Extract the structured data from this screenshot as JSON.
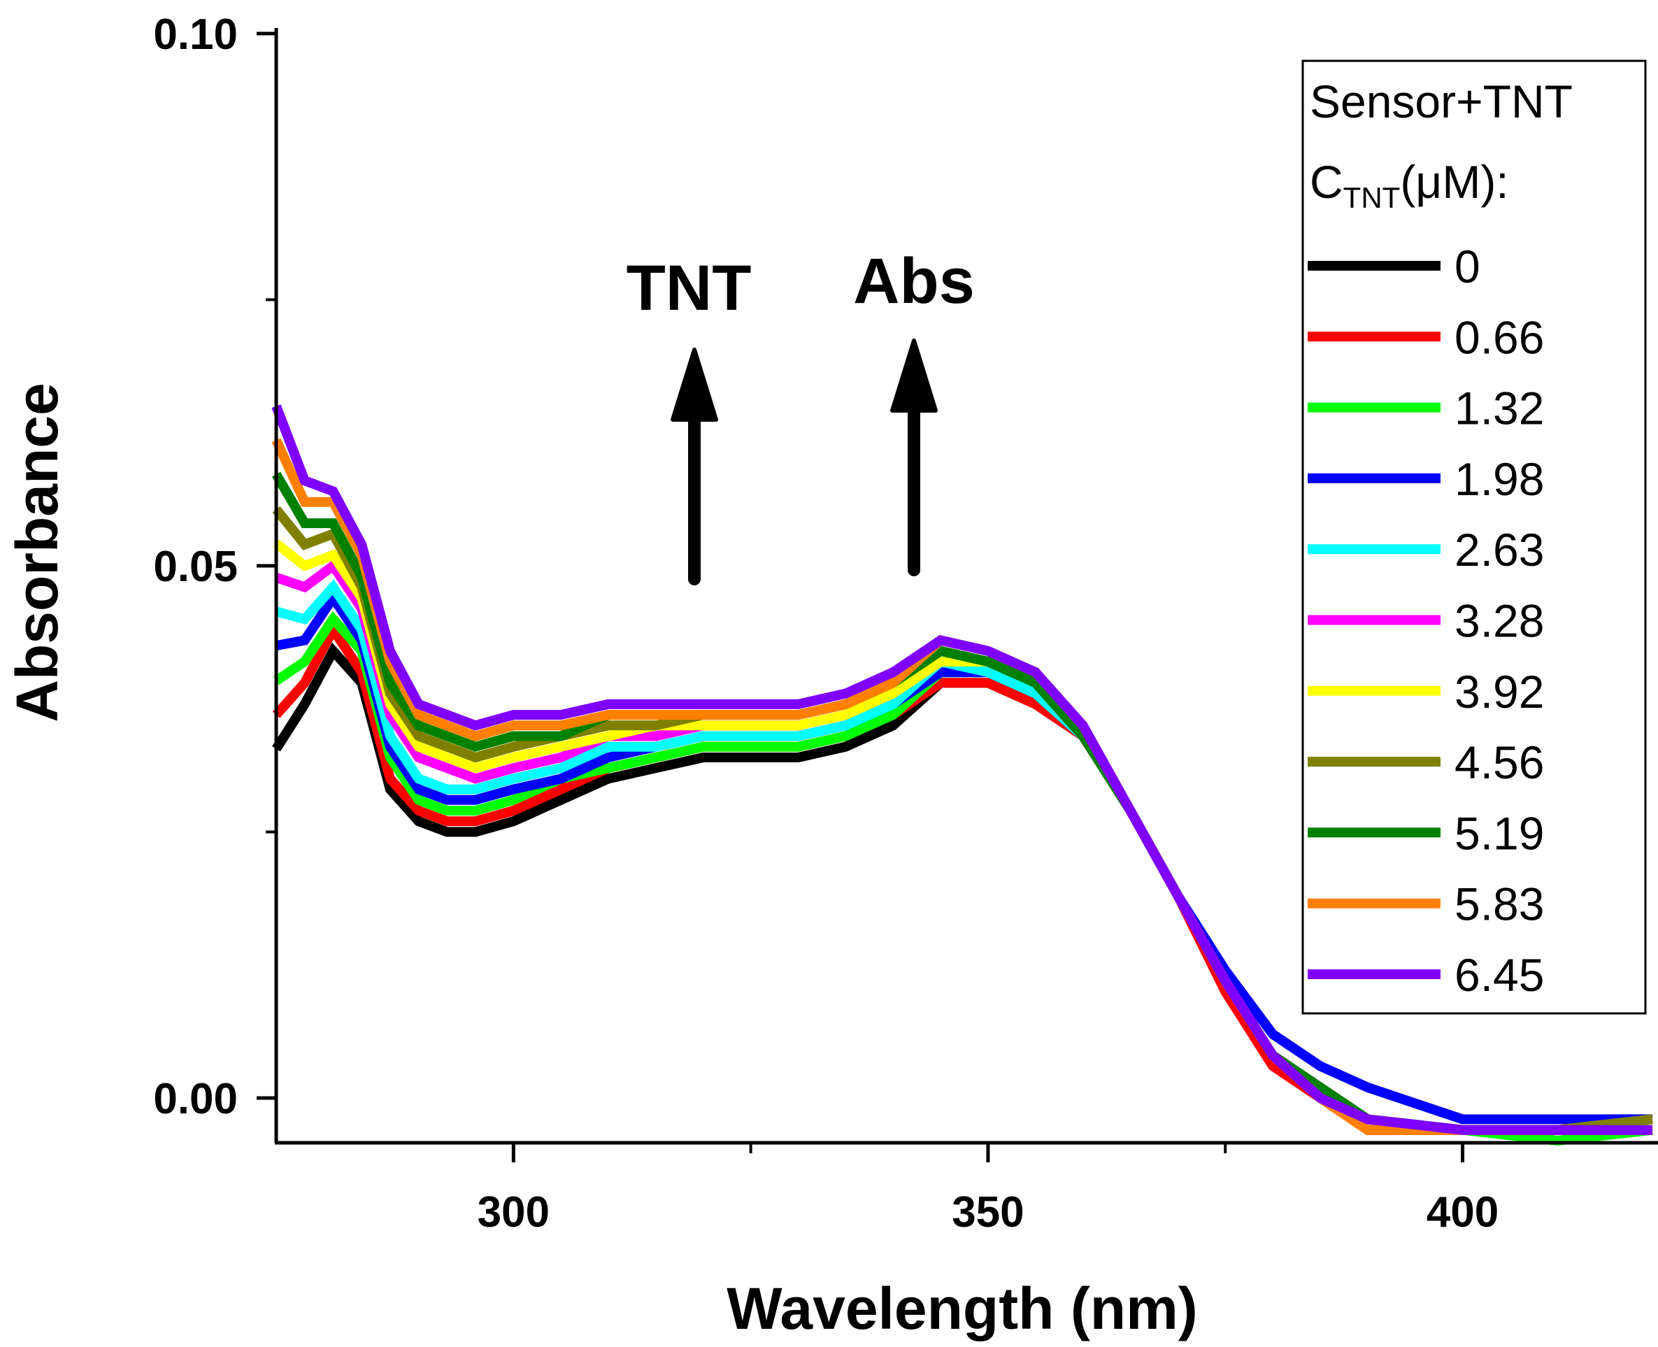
{
  "chart_data": {
    "type": "line",
    "xlabel": "Wavelength (nm)",
    "ylabel": "Absorbance",
    "xlim": [
      275,
      420
    ],
    "ylim": [
      -0.0042,
      0.1
    ],
    "xticks": [
      "300",
      "350",
      "400"
    ],
    "xtick_values": [
      300,
      350,
      400
    ],
    "yticks": [
      "0.00",
      "0.05",
      "0.10"
    ],
    "ytick_values": [
      0,
      0.05,
      0.1
    ],
    "grid": false,
    "legend": {
      "placement": "top-right",
      "title": "Sensor+TNT",
      "subtitle_main": "C",
      "subtitle_sub": "TNT",
      "subtitle_tail": "(μM):"
    },
    "annotations": [
      "TNT",
      "Abs"
    ],
    "x": [
      275,
      278,
      281,
      284,
      287,
      290,
      293,
      296,
      300,
      305,
      310,
      315,
      320,
      325,
      330,
      335,
      340,
      345,
      350,
      355,
      360,
      365,
      370,
      375,
      380,
      385,
      390,
      400,
      410,
      420
    ],
    "series": [
      {
        "name": "0",
        "color": "#000000",
        "values": [
          0.0328,
          0.037,
          0.042,
          0.039,
          0.029,
          0.026,
          0.025,
          0.025,
          0.026,
          0.028,
          0.03,
          0.031,
          0.032,
          0.032,
          0.032,
          0.033,
          0.035,
          0.039,
          0.039,
          0.037,
          0.034,
          0.027,
          0.019,
          0.011,
          0.004,
          0.001,
          -0.002,
          -0.003,
          -0.003,
          -0.003
        ]
      },
      {
        "name": "0.66",
        "color": "#ff0000",
        "values": [
          0.036,
          0.039,
          0.044,
          0.04,
          0.03,
          0.027,
          0.026,
          0.026,
          0.027,
          0.029,
          0.031,
          0.032,
          0.033,
          0.033,
          0.033,
          0.034,
          0.036,
          0.039,
          0.039,
          0.037,
          0.034,
          0.027,
          0.019,
          0.01,
          0.003,
          0.0,
          -0.003,
          -0.003,
          -0.003,
          -0.003
        ]
      },
      {
        "name": "1.32",
        "color": "#00ff00",
        "values": [
          0.0392,
          0.041,
          0.045,
          0.042,
          0.032,
          0.028,
          0.027,
          0.027,
          0.028,
          0.03,
          0.031,
          0.032,
          0.033,
          0.033,
          0.033,
          0.034,
          0.036,
          0.04,
          0.04,
          0.038,
          0.034,
          0.027,
          0.019,
          0.011,
          0.004,
          0.001,
          -0.002,
          -0.003,
          -0.004,
          -0.003
        ]
      },
      {
        "name": "1.98",
        "color": "#0000ff",
        "values": [
          0.0425,
          0.043,
          0.047,
          0.043,
          0.033,
          0.029,
          0.028,
          0.028,
          0.029,
          0.03,
          0.032,
          0.033,
          0.034,
          0.034,
          0.034,
          0.035,
          0.037,
          0.04,
          0.04,
          0.038,
          0.034,
          0.027,
          0.019,
          0.012,
          0.006,
          0.003,
          0.001,
          -0.002,
          -0.002,
          -0.002
        ]
      },
      {
        "name": "2.63",
        "color": "#00ffff",
        "values": [
          0.0457,
          0.045,
          0.048,
          0.044,
          0.034,
          0.03,
          0.029,
          0.029,
          0.03,
          0.031,
          0.033,
          0.033,
          0.034,
          0.034,
          0.034,
          0.035,
          0.037,
          0.041,
          0.04,
          0.038,
          0.034,
          0.027,
          0.019,
          0.011,
          0.004,
          0.0,
          -0.002,
          -0.003,
          -0.003,
          -0.003
        ]
      },
      {
        "name": "3.28",
        "color": "#ff00ff",
        "values": [
          0.0489,
          0.048,
          0.05,
          0.046,
          0.036,
          0.032,
          0.031,
          0.03,
          0.031,
          0.032,
          0.034,
          0.034,
          0.035,
          0.035,
          0.035,
          0.036,
          0.038,
          0.041,
          0.041,
          0.039,
          0.034,
          0.027,
          0.019,
          0.011,
          0.004,
          0.001,
          -0.002,
          -0.003,
          -0.003,
          -0.003
        ]
      },
      {
        "name": "3.92",
        "color": "#ffff00",
        "values": [
          0.0521,
          0.05,
          0.051,
          0.047,
          0.037,
          0.033,
          0.032,
          0.031,
          0.032,
          0.033,
          0.034,
          0.035,
          0.035,
          0.035,
          0.035,
          0.036,
          0.038,
          0.041,
          0.041,
          0.039,
          0.034,
          0.027,
          0.019,
          0.011,
          0.004,
          0.0,
          -0.002,
          -0.003,
          -0.003,
          -0.002
        ]
      },
      {
        "name": "4.56",
        "color": "#808000",
        "values": [
          0.0553,
          0.052,
          0.053,
          0.048,
          0.038,
          0.034,
          0.033,
          0.032,
          0.033,
          0.034,
          0.035,
          0.035,
          0.036,
          0.036,
          0.036,
          0.037,
          0.039,
          0.042,
          0.041,
          0.039,
          0.034,
          0.027,
          0.019,
          0.011,
          0.004,
          0.001,
          -0.002,
          -0.003,
          -0.003,
          -0.002
        ]
      },
      {
        "name": "5.19",
        "color": "#008000",
        "values": [
          0.0586,
          0.054,
          0.054,
          0.049,
          0.039,
          0.035,
          0.034,
          0.033,
          0.034,
          0.034,
          0.036,
          0.036,
          0.036,
          0.036,
          0.036,
          0.037,
          0.039,
          0.042,
          0.041,
          0.039,
          0.034,
          0.027,
          0.019,
          0.011,
          0.004,
          0.001,
          -0.002,
          -0.003,
          -0.003,
          -0.003
        ]
      },
      {
        "name": "5.83",
        "color": "#ff8000",
        "values": [
          0.0618,
          0.056,
          0.056,
          0.051,
          0.041,
          0.036,
          0.035,
          0.034,
          0.035,
          0.035,
          0.036,
          0.036,
          0.036,
          0.036,
          0.036,
          0.037,
          0.039,
          0.043,
          0.042,
          0.04,
          0.035,
          0.027,
          0.019,
          0.011,
          0.004,
          0.0,
          -0.003,
          -0.003,
          -0.003,
          -0.003
        ]
      },
      {
        "name": "6.45",
        "color": "#8000ff",
        "values": [
          0.065,
          0.058,
          0.057,
          0.052,
          0.042,
          0.037,
          0.036,
          0.035,
          0.036,
          0.036,
          0.037,
          0.037,
          0.037,
          0.037,
          0.037,
          0.038,
          0.04,
          0.043,
          0.042,
          0.04,
          0.035,
          0.027,
          0.019,
          0.011,
          0.004,
          0.0,
          -0.002,
          -0.003,
          -0.003,
          -0.003
        ]
      }
    ]
  }
}
